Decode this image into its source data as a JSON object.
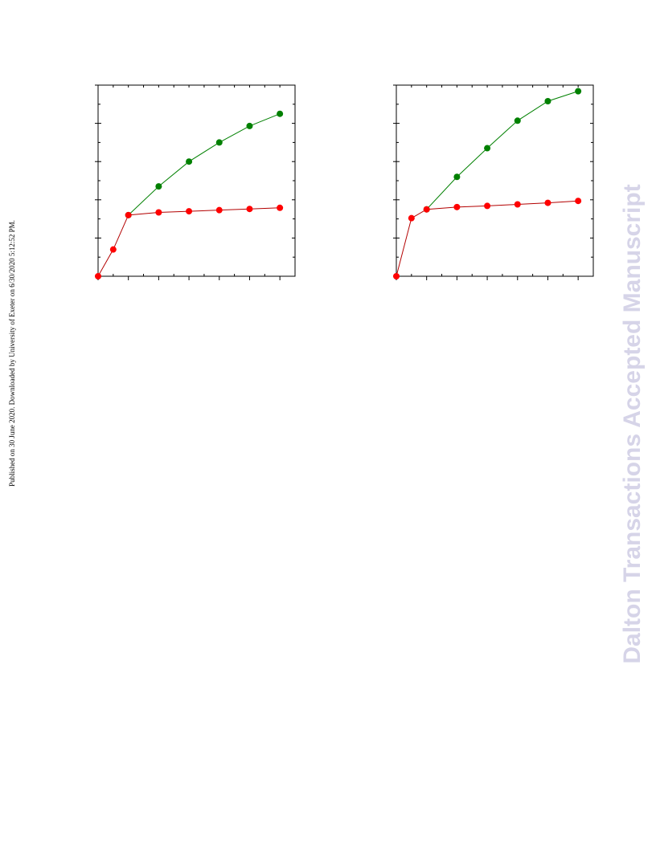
{
  "sidebar_note": "Published on 30 June 2020. Downloaded by University of Exeter on 6/30/2020 5:12:52 PM.",
  "watermark": "Dalton Transactions Accepted Manuscript",
  "colors": {
    "green": "#008000",
    "red": "#ff0000",
    "dark_red": "#b30000",
    "axis": "#000000"
  },
  "chart_data": [
    {
      "type": "line",
      "title": "",
      "xlabel": "",
      "ylabel": "",
      "xlim": [
        0,
        6.5
      ],
      "ylim": [
        0,
        5
      ],
      "grid": false,
      "x_major_ticks": [
        0,
        1,
        2,
        3,
        4,
        5,
        6
      ],
      "y_major_ticks": [
        0,
        1,
        2,
        3,
        4,
        5
      ],
      "series": [
        {
          "color": "#008000",
          "x": [
            1,
            2,
            3,
            4,
            5,
            6
          ],
          "y": [
            1.6,
            2.35,
            3.0,
            3.5,
            3.93,
            4.25
          ]
        },
        {
          "color": "#ff0000",
          "x": [
            0,
            0.5,
            1,
            2,
            3,
            4,
            5,
            6
          ],
          "y": [
            0,
            0.7,
            1.6,
            1.67,
            1.7,
            1.73,
            1.76,
            1.79
          ]
        }
      ]
    },
    {
      "type": "line",
      "title": "",
      "xlabel": "",
      "ylabel": "",
      "xlim": [
        0,
        6.5
      ],
      "ylim": [
        0,
        5
      ],
      "grid": false,
      "x_major_ticks": [
        0,
        1,
        2,
        3,
        4,
        5,
        6
      ],
      "y_major_ticks": [
        0,
        1,
        2,
        3,
        4,
        5
      ],
      "series": [
        {
          "color": "#008000",
          "x": [
            1,
            2,
            3,
            4,
            5,
            6
          ],
          "y": [
            1.75,
            2.6,
            3.35,
            4.07,
            4.58,
            4.84
          ]
        },
        {
          "color": "#ff0000",
          "x": [
            0,
            0.5,
            1,
            2,
            3,
            4,
            5,
            6
          ],
          "y": [
            0,
            1.52,
            1.75,
            1.81,
            1.84,
            1.88,
            1.92,
            1.97
          ]
        }
      ]
    }
  ]
}
